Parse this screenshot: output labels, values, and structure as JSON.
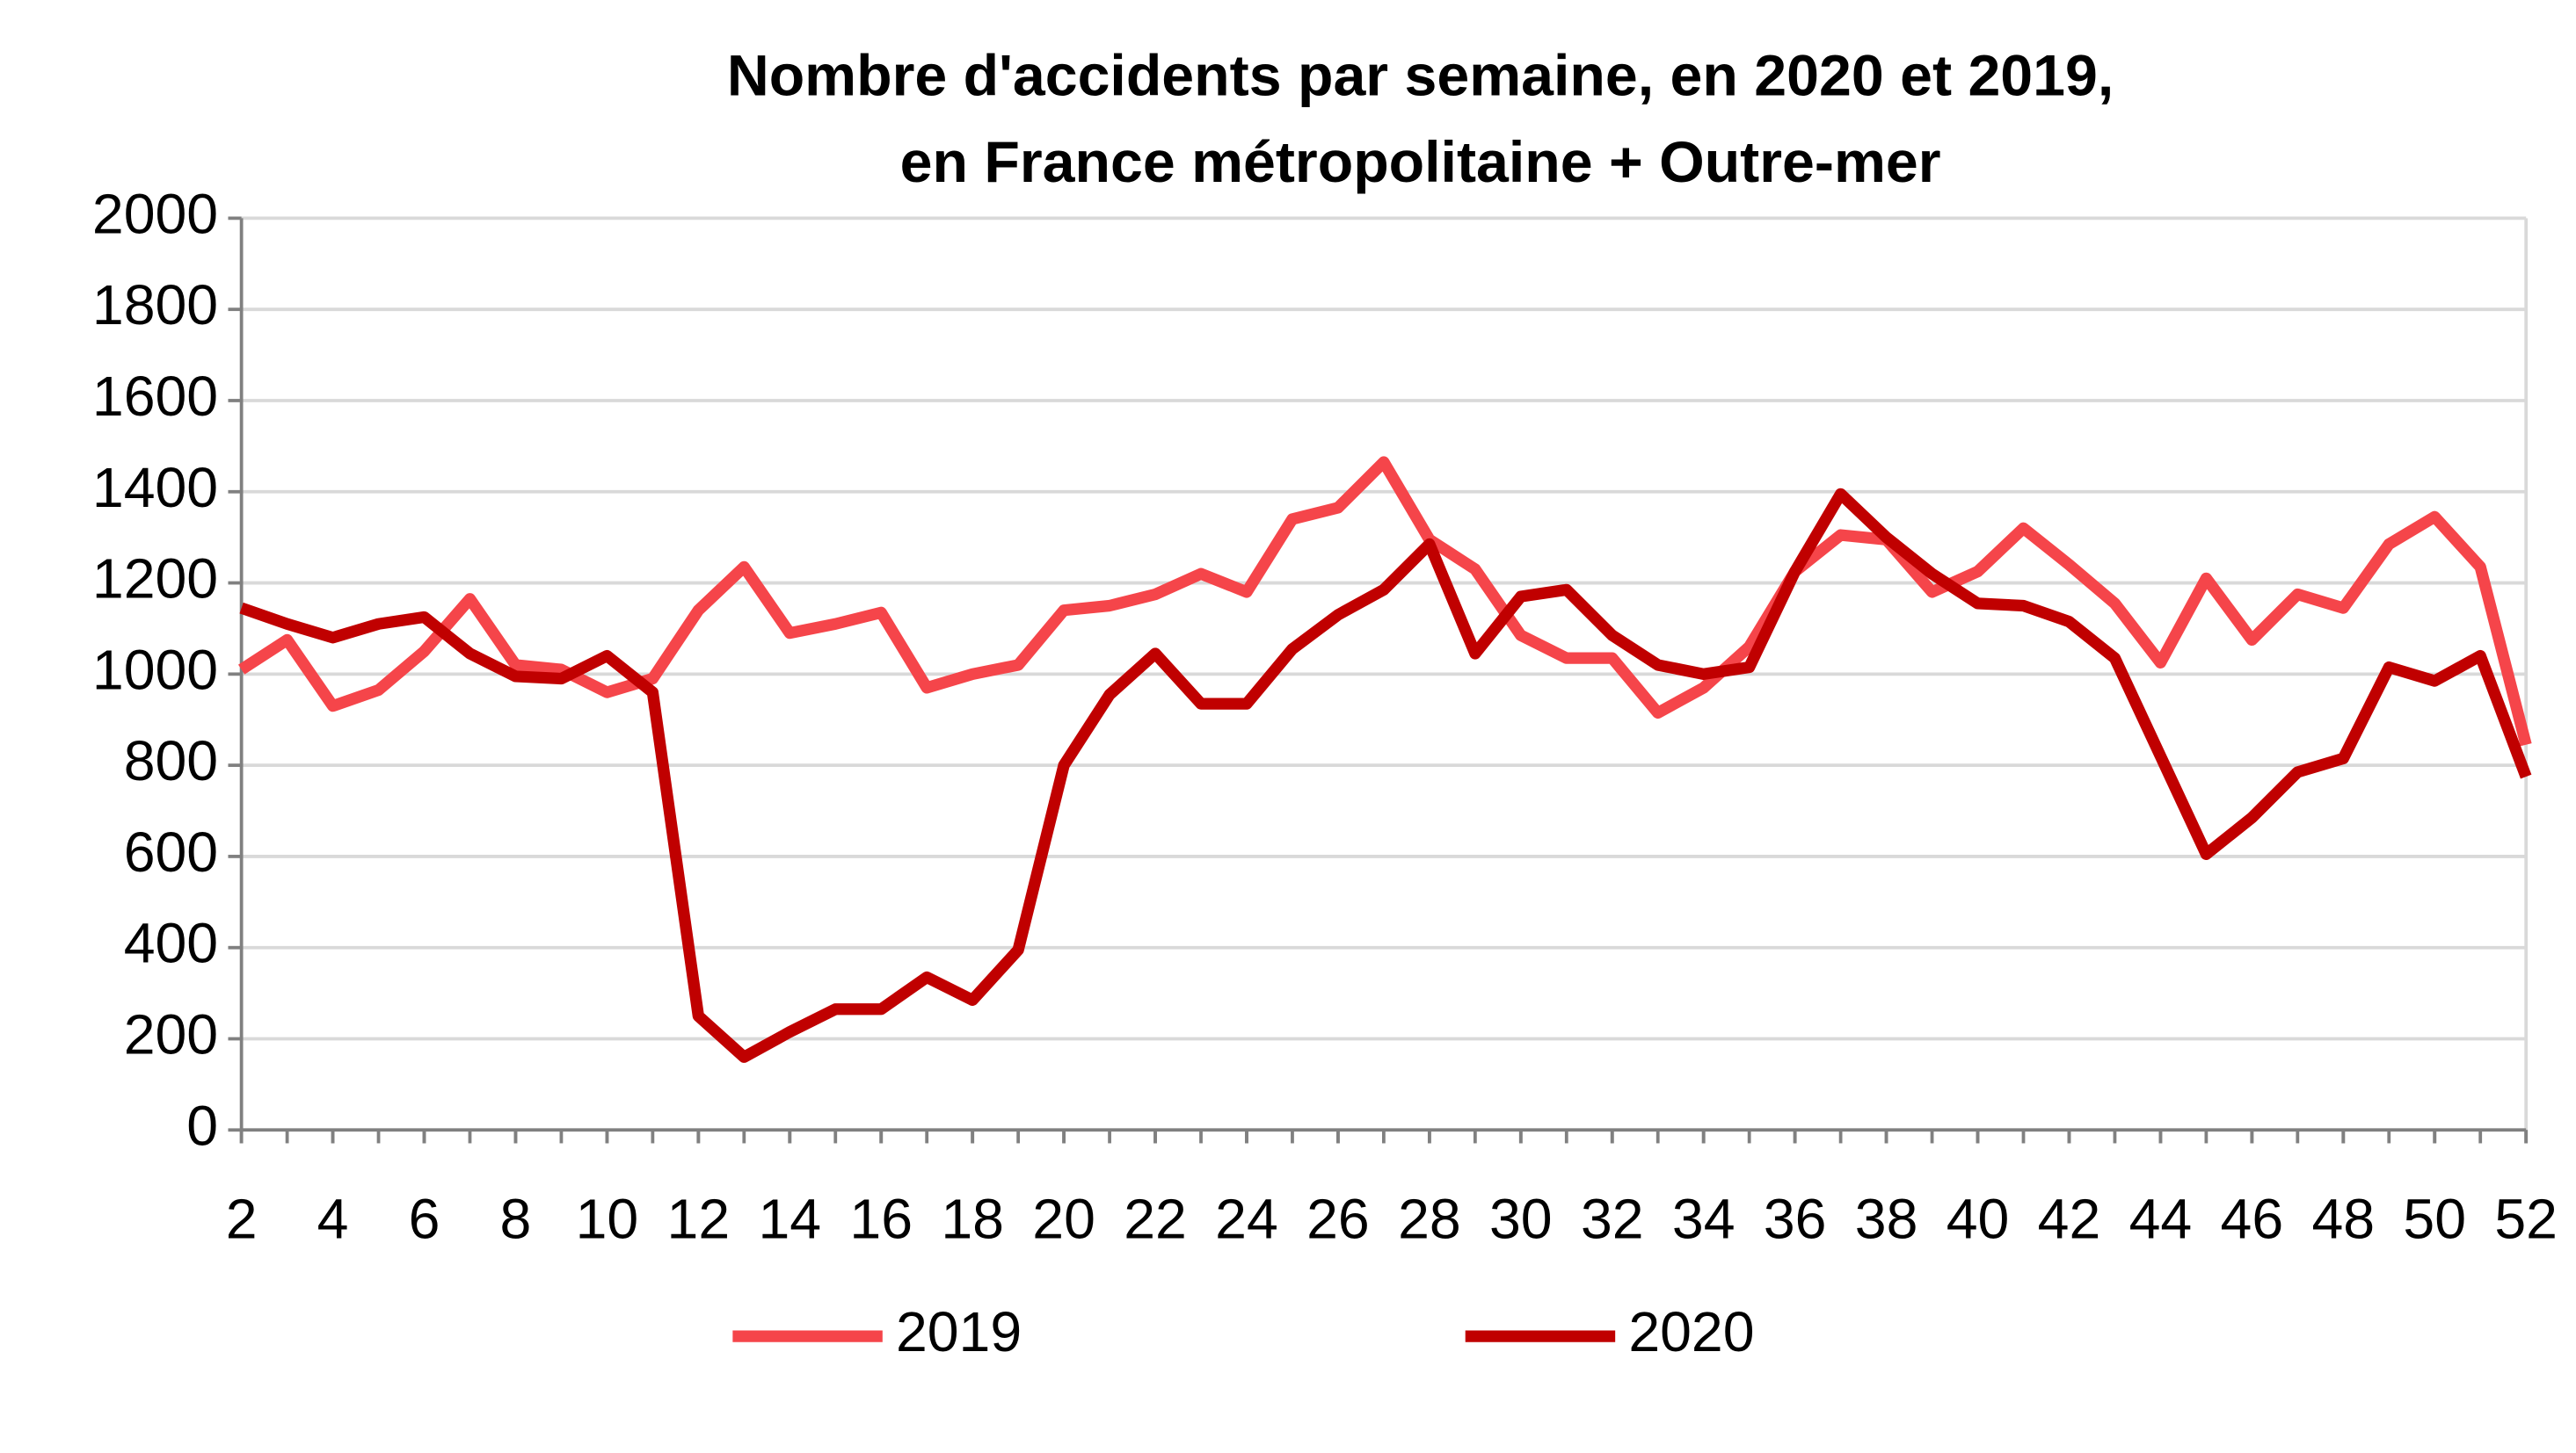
{
  "chart_data": {
    "type": "line",
    "title": [
      "Nombre d'accidents par semaine, en 2020 et 2019,",
      "en France métropolitaine + Outre-mer"
    ],
    "x": [
      2,
      3,
      4,
      5,
      6,
      7,
      8,
      9,
      10,
      11,
      12,
      13,
      14,
      15,
      16,
      17,
      18,
      19,
      20,
      21,
      22,
      23,
      24,
      25,
      26,
      27,
      28,
      29,
      30,
      31,
      32,
      33,
      34,
      35,
      36,
      37,
      38,
      39,
      40,
      41,
      42,
      43,
      44,
      45,
      46,
      47,
      48,
      49,
      50,
      51,
      52
    ],
    "series": [
      {
        "name": "2019",
        "color": "#f5454a",
        "values": [
          1010,
          1075,
          930,
          965,
          1050,
          1165,
          1020,
          1010,
          960,
          990,
          1140,
          1235,
          1090,
          1110,
          1135,
          970,
          1000,
          1020,
          1140,
          1150,
          1175,
          1220,
          1180,
          1340,
          1365,
          1465,
          1295,
          1230,
          1085,
          1035,
          1035,
          915,
          970,
          1060,
          1225,
          1305,
          1295,
          1180,
          1225,
          1320,
          1240,
          1155,
          1025,
          1210,
          1075,
          1175,
          1145,
          1285,
          1345,
          1235,
          845
        ]
      },
      {
        "name": "2020",
        "color": "#c00000",
        "values": [
          1145,
          1110,
          1080,
          1110,
          1125,
          1045,
          995,
          990,
          1040,
          960,
          250,
          160,
          215,
          265,
          265,
          335,
          285,
          395,
          800,
          955,
          1045,
          935,
          935,
          1055,
          1130,
          1185,
          1285,
          1045,
          1170,
          1185,
          1085,
          1020,
          1000,
          1015,
          1225,
          1395,
          1300,
          1220,
          1155,
          1150,
          1115,
          1035,
          820,
          605,
          685,
          785,
          815,
          1015,
          985,
          1040,
          775
        ]
      }
    ],
    "xlim": [
      2,
      52
    ],
    "xticks": [
      2,
      4,
      6,
      8,
      10,
      12,
      14,
      16,
      18,
      20,
      22,
      24,
      26,
      28,
      30,
      32,
      34,
      36,
      38,
      40,
      42,
      44,
      46,
      48,
      50,
      52
    ],
    "ylim": [
      0,
      2000
    ],
    "yticks": [
      0,
      200,
      400,
      600,
      800,
      1000,
      1200,
      1400,
      1600,
      1800,
      2000
    ],
    "grid": true,
    "legend": "bottom"
  }
}
